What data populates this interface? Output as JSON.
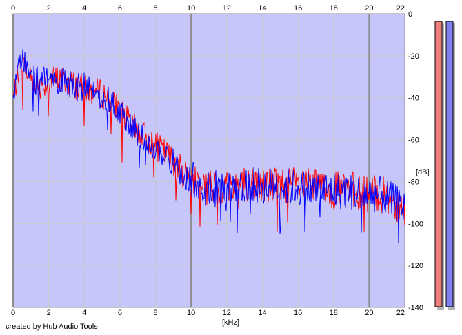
{
  "app": {
    "credit": "created by Hub Audio Tools"
  },
  "colors": {
    "background": "#ffffff",
    "plot_fill": "#c6c6fa",
    "grid_minor": "#c8c8c8",
    "grid_major": "#8c8c8c",
    "left_channel": "#ff0000",
    "right_channel": "#0000ff",
    "meter_left": "#f08080",
    "meter_right": "#8080f0",
    "meter_shadow": "#b4b4b4"
  },
  "chart_data": {
    "type": "line",
    "x_label": "[kHz]",
    "y_label": "[dB]",
    "x_unit": "kHz",
    "y_unit": "dB",
    "xlim": [
      0,
      22
    ],
    "ylim": [
      -140,
      0
    ],
    "x_ticks": [
      "0",
      "2",
      "4",
      "6",
      "8",
      "10",
      "12",
      "14",
      "16",
      "18",
      "20",
      "22"
    ],
    "y_ticks": [
      "0",
      "-20",
      "-40",
      "-60",
      "-80",
      "-100",
      "-120",
      "-140"
    ],
    "major_x_gridlines": [
      0,
      10,
      20
    ],
    "grid": true,
    "legend": "none",
    "x": [
      0,
      0.25,
      0.5,
      0.75,
      1.0,
      1.5,
      2.0,
      2.5,
      3.0,
      3.5,
      4.0,
      4.5,
      5.0,
      5.5,
      6.0,
      6.5,
      7.0,
      7.5,
      8.0,
      8.5,
      9.0,
      9.5,
      10.0,
      10.5,
      11.0,
      11.5,
      12.0,
      13.0,
      14.0,
      15.0,
      16.0,
      17.0,
      18.0,
      19.0,
      20.0,
      20.5,
      21.0,
      21.5,
      22.0
    ],
    "series": [
      {
        "channel": "left",
        "color": "#ff0000",
        "values": [
          -40,
          -30,
          -22,
          -28,
          -30,
          -34,
          -32,
          -31,
          -32,
          -34,
          -36,
          -37,
          -38,
          -42,
          -46,
          -52,
          -56,
          -59,
          -63,
          -66,
          -70,
          -75,
          -78,
          -80,
          -82,
          -84,
          -82,
          -81,
          -82,
          -81,
          -82,
          -83,
          -84,
          -84,
          -86,
          -86,
          -87,
          -90,
          -92
        ]
      },
      {
        "channel": "right",
        "color": "#0000ff",
        "values": [
          -40,
          -28,
          -20,
          -26,
          -31,
          -33,
          -31,
          -32,
          -33,
          -35,
          -35,
          -36,
          -39,
          -43,
          -47,
          -53,
          -57,
          -60,
          -64,
          -67,
          -71,
          -76,
          -79,
          -81,
          -84,
          -83,
          -83,
          -82,
          -82,
          -82,
          -83,
          -84,
          -84,
          -85,
          -86,
          -86,
          -88,
          -90,
          -92
        ]
      }
    ],
    "level_meters": [
      {
        "channel": "left",
        "level": 1.0
      },
      {
        "channel": "right",
        "level": 1.0
      }
    ]
  }
}
